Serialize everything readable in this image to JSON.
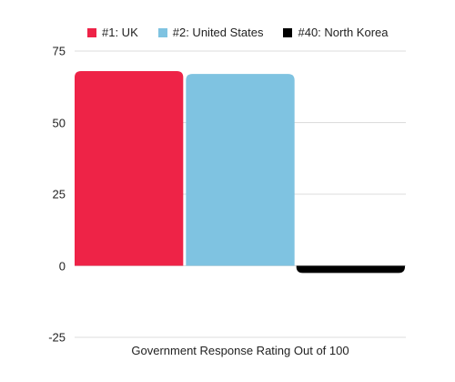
{
  "chart_data": {
    "type": "bar",
    "title": "",
    "xlabel": "Government Response Rating Out of 100",
    "ylabel": "",
    "ylim": [
      -25,
      75
    ],
    "yticks": [
      75,
      50,
      25,
      0,
      -25
    ],
    "grid": true,
    "legend_position": "top",
    "series": [
      {
        "name": "#1: UK",
        "value": 68,
        "color": "#ee2347"
      },
      {
        "name": "#2: United States",
        "value": 67,
        "color": "#7fc3e1"
      },
      {
        "name": "#40: North Korea",
        "value": -2.5,
        "color": "#000000"
      }
    ]
  }
}
